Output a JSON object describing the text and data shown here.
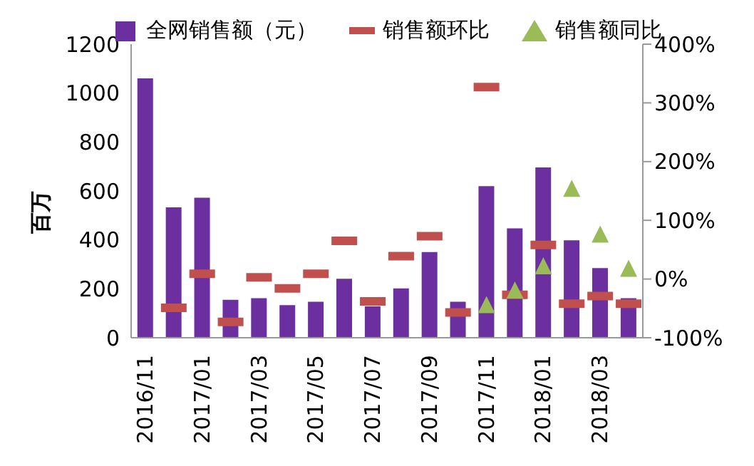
{
  "chart_data": {
    "type": "bar",
    "ylabel": "百万",
    "categories": [
      "2016/11",
      null,
      "2017/01",
      null,
      "2017/03",
      null,
      "2017/05",
      null,
      "2017/07",
      null,
      "2017/09",
      null,
      "2017/11",
      null,
      "2018/01",
      null,
      "2018/03",
      null
    ],
    "series": [
      {
        "name": "全网销售额（元）",
        "color": "#6b2fa0",
        "values": [
          1060,
          533,
          572,
          155,
          162,
          133,
          147,
          241,
          128,
          202,
          350,
          147,
          620,
          447,
          696,
          398,
          285,
          162
        ]
      },
      {
        "name": "销售额环比",
        "type": "scatter",
        "axis": "y2",
        "color": "#c0504d",
        "values": [
          null,
          -49,
          9,
          -73,
          3,
          -16,
          9,
          65,
          -38,
          39,
          73,
          -57,
          327,
          -27,
          58,
          -42,
          -29,
          -42
        ]
      },
      {
        "name": "销售额同比",
        "type": "scatter",
        "marker": "triangle",
        "axis": "y2",
        "color": "#9bbb59",
        "values": [
          null,
          null,
          null,
          null,
          null,
          null,
          null,
          null,
          null,
          null,
          null,
          null,
          -46,
          -21,
          20,
          152,
          74,
          16
        ]
      }
    ],
    "ylim": [
      0,
      1200
    ],
    "yticks": [
      0,
      200,
      400,
      600,
      800,
      1000,
      1200
    ],
    "y2lim": [
      -100,
      400
    ],
    "y2ticks": [
      {
        "value": -100,
        "label": "-100%"
      },
      {
        "value": 0,
        "label": "0%"
      },
      {
        "value": 100,
        "label": "100%"
      },
      {
        "value": 200,
        "label": "200%"
      },
      {
        "value": 300,
        "label": "300%"
      },
      {
        "value": 400,
        "label": "400%"
      }
    ],
    "grid": false,
    "legend": "top"
  }
}
